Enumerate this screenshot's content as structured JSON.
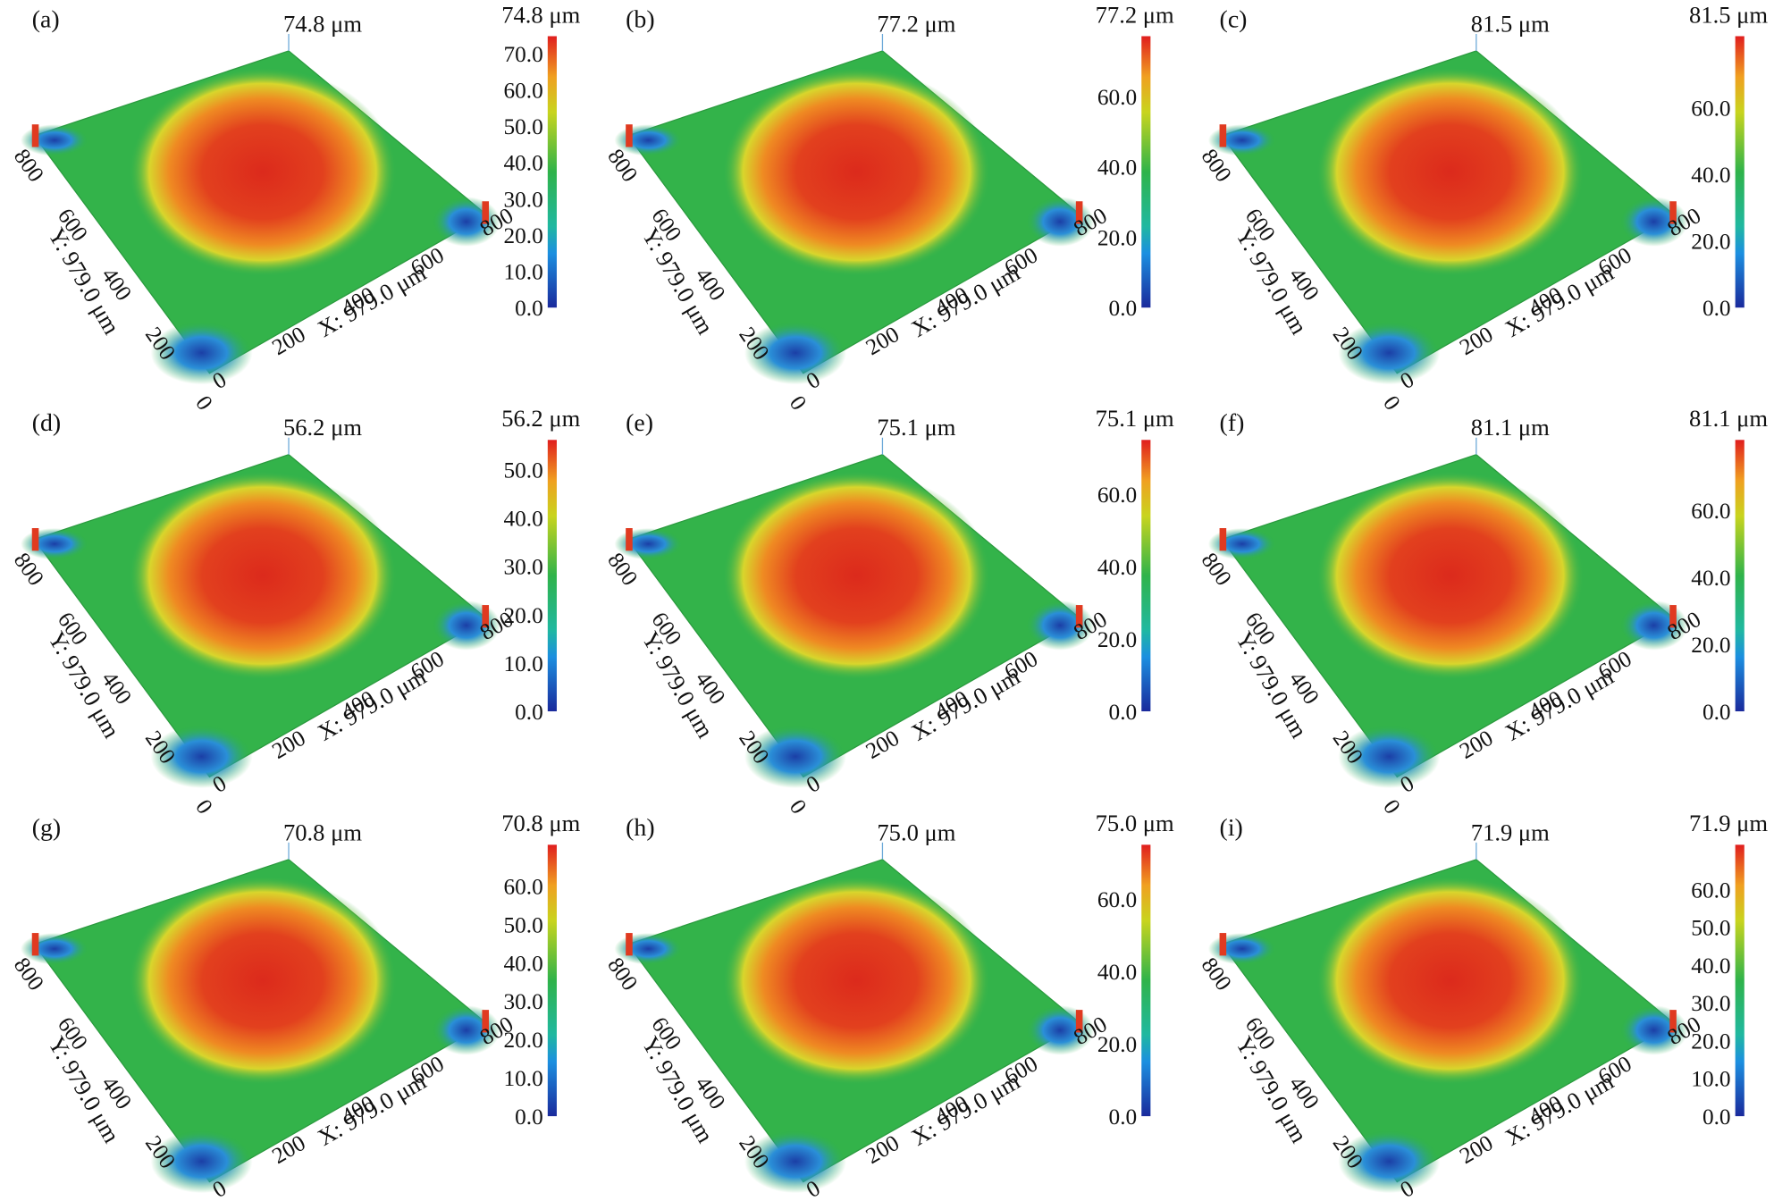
{
  "panels": [
    {
      "label": "(a)",
      "peak": "74.8 μm",
      "colorbar_title": "74.8 μm",
      "colorbar_ticks": [
        "0.0",
        "10.0",
        "20.0",
        "30.0",
        "40.0",
        "50.0",
        "60.0",
        "70.0"
      ],
      "y_axis_title": "Y: 979.0 μm",
      "x_axis_title": "X: 979.0 μm",
      "y_ticks": [
        "800",
        "600",
        "400",
        "200",
        "0"
      ],
      "x_ticks": [
        "0",
        "200",
        "400",
        "600",
        "800"
      ]
    },
    {
      "label": "(b)",
      "peak": "77.2 μm",
      "colorbar_title": "77.2 μm",
      "colorbar_ticks": [
        "0.0",
        "20.0",
        "40.0",
        "60.0"
      ],
      "y_axis_title": "Y: 979.0 μm",
      "x_axis_title": "X: 979.0 μm",
      "y_ticks": [
        "800",
        "600",
        "400",
        "200",
        "0"
      ],
      "x_ticks": [
        "0",
        "200",
        "400",
        "600",
        "800"
      ]
    },
    {
      "label": "(c)",
      "peak": "81.5 μm",
      "colorbar_title": "81.5 μm",
      "colorbar_ticks": [
        "0.0",
        "20.0",
        "40.0",
        "60.0"
      ],
      "y_axis_title": "Y: 979.0 μm",
      "x_axis_title": "X: 979.0 μm",
      "y_ticks": [
        "800",
        "600",
        "400",
        "200",
        "0"
      ],
      "x_ticks": [
        "0",
        "200",
        "400",
        "600",
        "800"
      ]
    },
    {
      "label": "(d)",
      "peak": "56.2 μm",
      "colorbar_title": "56.2 μm",
      "colorbar_ticks": [
        "0.0",
        "10.0",
        "20.0",
        "30.0",
        "40.0",
        "50.0"
      ],
      "y_axis_title": "Y: 979.0 μm",
      "x_axis_title": "X: 979.0 μm",
      "y_ticks": [
        "800",
        "600",
        "400",
        "200",
        "0"
      ],
      "x_ticks": [
        "0",
        "200",
        "400",
        "600",
        "800"
      ]
    },
    {
      "label": "(e)",
      "peak": "75.1 μm",
      "colorbar_title": "75.1 μm",
      "colorbar_ticks": [
        "0.0",
        "20.0",
        "40.0",
        "60.0"
      ],
      "y_axis_title": "Y: 979.0 μm",
      "x_axis_title": "X: 979.0 μm",
      "y_ticks": [
        "800",
        "600",
        "400",
        "200",
        "0"
      ],
      "x_ticks": [
        "0",
        "200",
        "400",
        "600",
        "800"
      ]
    },
    {
      "label": "(f)",
      "peak": "81.1 μm",
      "colorbar_title": "81.1 μm",
      "colorbar_ticks": [
        "0.0",
        "20.0",
        "40.0",
        "60.0"
      ],
      "y_axis_title": "Y: 979.0 μm",
      "x_axis_title": "X: 979.0 μm",
      "y_ticks": [
        "800",
        "600",
        "400",
        "200",
        "0"
      ],
      "x_ticks": [
        "0",
        "200",
        "400",
        "600",
        "800"
      ]
    },
    {
      "label": "(g)",
      "peak": "70.8 μm",
      "colorbar_title": "70.8 μm",
      "colorbar_ticks": [
        "0.0",
        "10.0",
        "20.0",
        "30.0",
        "40.0",
        "50.0",
        "60.0"
      ],
      "y_axis_title": "Y: 979.0 μm",
      "x_axis_title": "X: 979.0 μm",
      "y_ticks": [
        "800",
        "600",
        "400",
        "200",
        "0"
      ],
      "x_ticks": [
        "0",
        "200",
        "400",
        "600",
        "800"
      ]
    },
    {
      "label": "(h)",
      "peak": "75.0 μm",
      "colorbar_title": "75.0 μm",
      "colorbar_ticks": [
        "0.0",
        "20.0",
        "40.0",
        "60.0"
      ],
      "y_axis_title": "Y: 979.0 μm",
      "x_axis_title": "X: 979.0 μm",
      "y_ticks": [
        "800",
        "600",
        "400",
        "200",
        "0"
      ],
      "x_ticks": [
        "0",
        "200",
        "400",
        "600",
        "800"
      ]
    },
    {
      "label": "(i)",
      "peak": "71.9 μm",
      "colorbar_title": "71.9 μm",
      "colorbar_ticks": [
        "0.0",
        "10.0",
        "20.0",
        "30.0",
        "40.0",
        "50.0",
        "60.0"
      ],
      "y_axis_title": "Y: 979.0 μm",
      "x_axis_title": "X: 979.0 μm",
      "y_ticks": [
        "800",
        "600",
        "400",
        "200",
        "0"
      ],
      "x_ticks": [
        "0",
        "200",
        "400",
        "600",
        "800"
      ]
    }
  ]
}
